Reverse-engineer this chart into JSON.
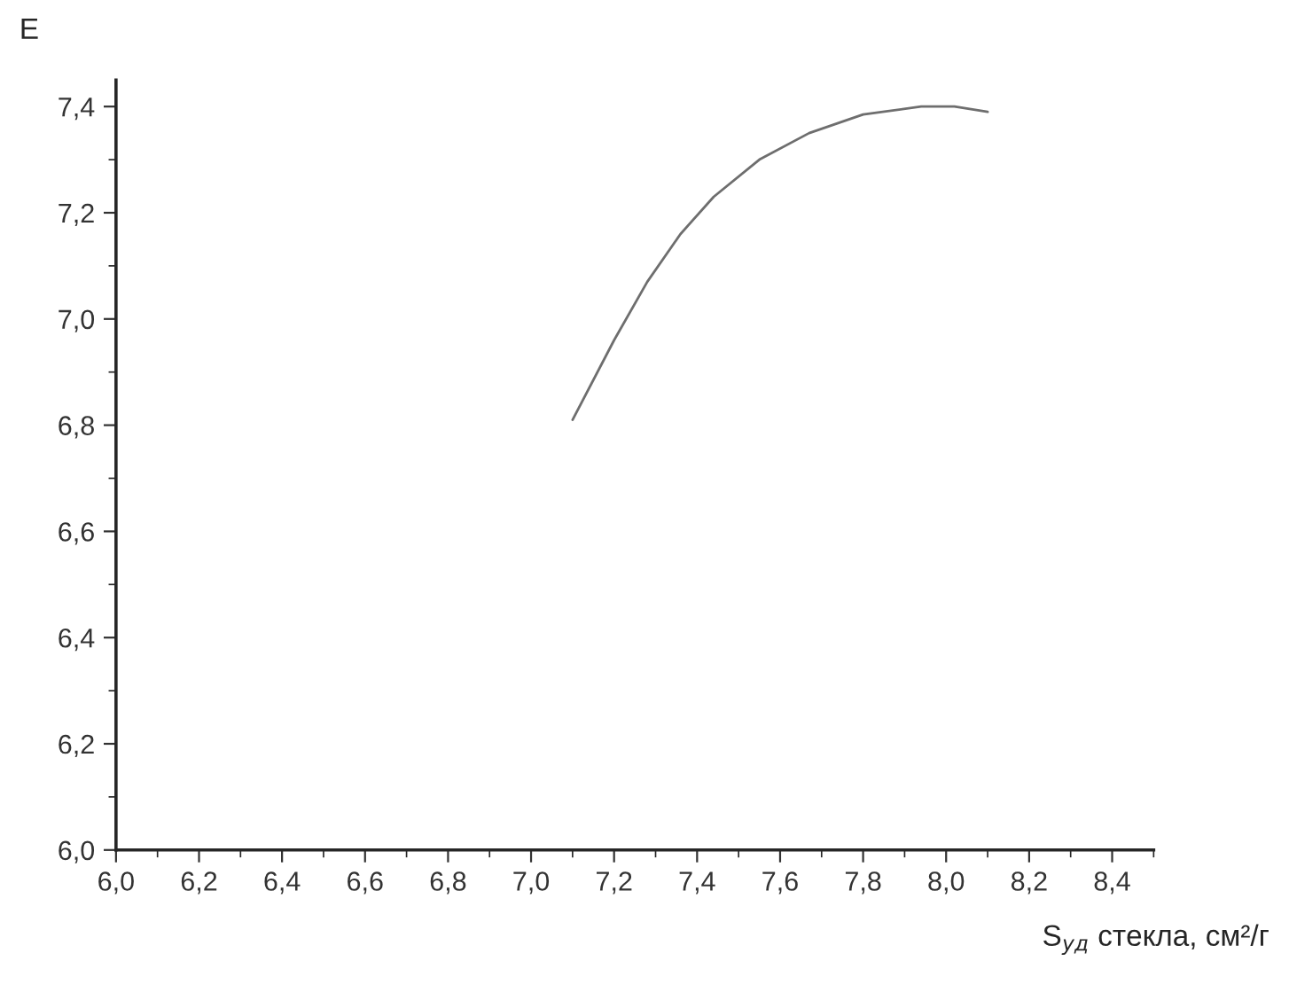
{
  "chart_data": {
    "type": "line",
    "xlabel": "S$_{уд}$ стекла, см²/г",
    "ylabel": "E",
    "x": [
      7.1,
      7.2,
      7.28,
      7.36,
      7.44,
      7.55,
      7.67,
      7.8,
      7.94,
      8.02,
      8.1
    ],
    "series": [
      {
        "color": "#6e6e6e",
        "values": [
          6.81,
          6.96,
          7.07,
          7.16,
          7.23,
          7.3,
          7.35,
          7.385,
          7.4,
          7.4,
          7.39
        ]
      }
    ],
    "xlim": [
      6.0,
      8.5
    ],
    "ylim": [
      6.0,
      7.45
    ],
    "xticks": [
      {
        "value": 6.0,
        "label": "6,0"
      },
      {
        "value": 6.2,
        "label": "6,2"
      },
      {
        "value": 6.4,
        "label": "6,4"
      },
      {
        "value": 6.6,
        "label": "6,6"
      },
      {
        "value": 6.8,
        "label": "6,8"
      },
      {
        "value": 7.0,
        "label": "7,0"
      },
      {
        "value": 7.2,
        "label": "7,2"
      },
      {
        "value": 7.4,
        "label": "7,4"
      },
      {
        "value": 7.6,
        "label": "7,6"
      },
      {
        "value": 7.8,
        "label": "7,8"
      },
      {
        "value": 8.0,
        "label": "8,0"
      },
      {
        "value": 8.2,
        "label": "8,2"
      },
      {
        "value": 8.4,
        "label": "8,4"
      }
    ],
    "yticks": [
      {
        "value": 6.0,
        "label": "6,0"
      },
      {
        "value": 6.2,
        "label": "6,2"
      },
      {
        "value": 6.4,
        "label": "6,4"
      },
      {
        "value": 6.6,
        "label": "6,6"
      },
      {
        "value": 6.8,
        "label": "6,8"
      },
      {
        "value": 7.0,
        "label": "7,0"
      },
      {
        "value": 7.2,
        "label": "7,2"
      },
      {
        "value": 7.4,
        "label": "7,4"
      }
    ],
    "grid": false,
    "legend": false,
    "marker": "none",
    "line_style": "solid"
  }
}
